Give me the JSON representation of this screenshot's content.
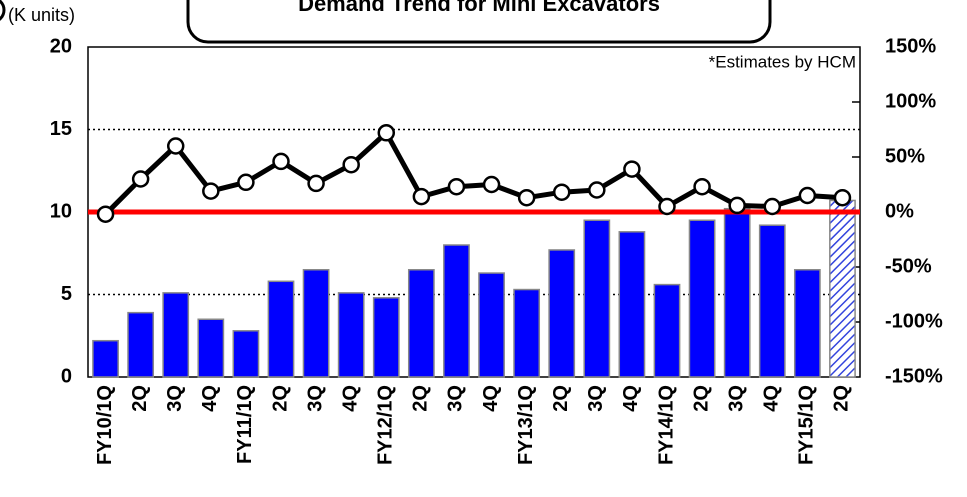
{
  "chart_data": {
    "type": "bar_line",
    "title": "Demand Trend for Mini Excavators",
    "y_label": "(K units)",
    "annotation": "*Estimates by HCM",
    "categories": [
      "FY10/1Q",
      "2Q",
      "3Q",
      "4Q",
      "FY11/1Q",
      "2Q",
      "3Q",
      "4Q",
      "FY12/1Q",
      "2Q",
      "3Q",
      "4Q",
      "FY13/1Q",
      "2Q",
      "3Q",
      "4Q",
      "FY14/1Q",
      "2Q",
      "3Q",
      "4Q",
      "FY15/1Q",
      "2Q"
    ],
    "series": [
      {
        "type": "bar",
        "color": "#0000ff",
        "last_hatched": true,
        "values": [
          2.2,
          3.9,
          5.1,
          3.5,
          2.8,
          5.8,
          6.5,
          5.1,
          4.8,
          6.5,
          8.0,
          6.3,
          5.3,
          7.7,
          9.5,
          8.8,
          5.6,
          9.5,
          10.2,
          9.2,
          6.5,
          10.7
        ]
      },
      {
        "type": "line",
        "axis": "y2",
        "color": "#000000",
        "values": [
          -2,
          30,
          60,
          19,
          27,
          46,
          26,
          43,
          72,
          14,
          23,
          25,
          13,
          18,
          20,
          39,
          5,
          23,
          6,
          5,
          15,
          13
        ]
      }
    ],
    "ylim": [
      0,
      20
    ],
    "yticks": [
      0,
      5,
      10,
      15,
      20
    ],
    "y2lim": [
      -150,
      150
    ],
    "y2ticks": [
      {
        "value": -150,
        "label": "-150%"
      },
      {
        "value": -100,
        "label": "-100%"
      },
      {
        "value": -50,
        "label": "-50%"
      },
      {
        "value": 0,
        "label": "0%"
      },
      {
        "value": 50,
        "label": "50%"
      },
      {
        "value": 100,
        "label": "100%"
      },
      {
        "value": 150,
        "label": "150%"
      }
    ],
    "zero_line_color": "#ff0000",
    "grid": true
  }
}
